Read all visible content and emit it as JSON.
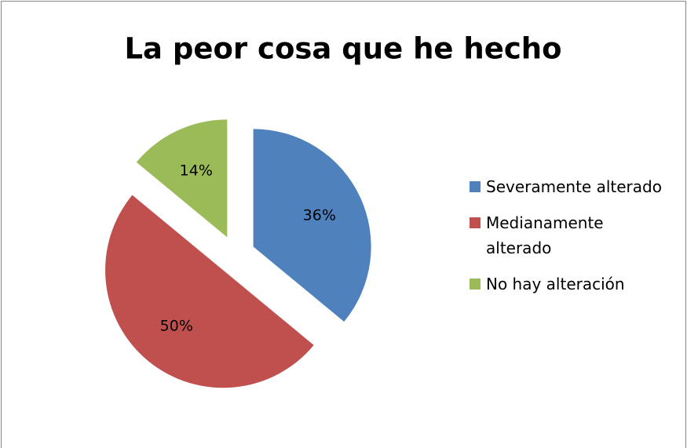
{
  "chart_data": {
    "type": "pie",
    "title": "La peor cosa que he hecho",
    "categories": [
      "Severamente alterado",
      "Medianamente alterado",
      "No hay alteración"
    ],
    "values": [
      36,
      50,
      14
    ],
    "value_labels": [
      "36%",
      "50%",
      "14%"
    ],
    "colors": [
      "#4f81bd",
      "#c0504d",
      "#9bbb59"
    ],
    "legend": "right"
  }
}
